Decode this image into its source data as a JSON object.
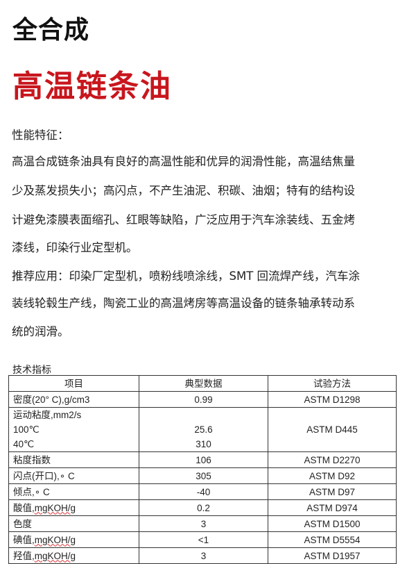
{
  "title_top": "全合成",
  "title_main": "高温链条油",
  "body_lines": [
    "性能特征：",
    "高温合成链条油具有良好的高温性能和优异的润滑性能，高温结焦量",
    "少及蒸发损失小；高闪点，不产生油泥、积碳、油烟；特有的结构设",
    "计避免漆膜表面缩孔、红眼等缺陷，广泛应用于汽车涂装线、五金烤",
    "漆线，印染行业定型机。",
    "推荐应用：印染厂定型机，喷粉线喷涂线，SMT 回流焊产线，汽车涂",
    "装线轮毂生产线，陶瓷工业的高温烤房等高温设备的链条轴承转动系",
    "统的润滑。"
  ],
  "table_caption": "技术指标",
  "table": {
    "headers": [
      "项目",
      "典型数据",
      "试验方法"
    ],
    "rows": [
      {
        "item": "密度(20° C),g/cm3",
        "value": "0.99",
        "method": "ASTM D1298"
      },
      {
        "item": "运动粘度,mm2/s",
        "item2": "100℃",
        "item3": "40℃",
        "value2": "25.6",
        "value3": "310",
        "method": "ASTM D445"
      },
      {
        "item": "粘度指数",
        "value": "106",
        "method": "ASTM D2270"
      },
      {
        "item": "闪点(开口),∘ C",
        "value": "305",
        "method": "ASTM D92"
      },
      {
        "item": "倾点,∘ C",
        "value": "-40",
        "method": "ASTM D97"
      },
      {
        "item_a": "酸值,",
        "item_b": "mgKOH/g",
        "value": "0.2",
        "method": "ASTM D974"
      },
      {
        "item": "色度",
        "value": "3",
        "method": "ASTM D1500"
      },
      {
        "item_a": "碘值,",
        "item_b": "mgKOH/g",
        "value": "<1",
        "method": "ASTM D5554"
      },
      {
        "item_a": "羟值,",
        "item_b": "mgKOH/g",
        "value": "3",
        "method": "ASTM D1957"
      }
    ]
  }
}
